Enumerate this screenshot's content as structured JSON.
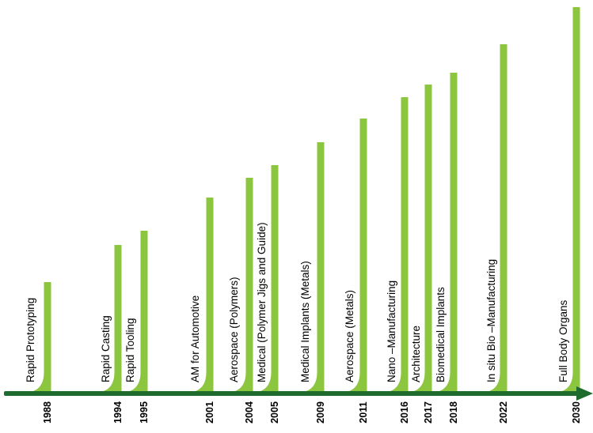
{
  "colors": {
    "bar": "#8cc63f",
    "axis": "#1e6b2e"
  },
  "events": [
    {
      "year": "1988",
      "label": "Rapid Prototyping"
    },
    {
      "year": "1994",
      "label": "Rapid  Casting"
    },
    {
      "year": "1995",
      "label": "Rapid  Tooling"
    },
    {
      "year": "2001",
      "label": "AM for Automotive"
    },
    {
      "year": "2004",
      "label": "Aerospace (Polymers)"
    },
    {
      "year": "2005",
      "label": "Medical  (Polymer Jigs and Guide)"
    },
    {
      "year": "2009",
      "label": "Medical  Implants (Metals)"
    },
    {
      "year": "2011",
      "label": "Aerospace (Metals)"
    },
    {
      "year": "2016",
      "label": "Nano –Manufacturing"
    },
    {
      "year": "2017",
      "label": "Architecture"
    },
    {
      "year": "2018",
      "label": "Biomedical Implants"
    },
    {
      "year": "2022",
      "label": "In situ Bio –Manufacturing"
    },
    {
      "year": "2030",
      "label": "Full Body Organs"
    }
  ]
}
